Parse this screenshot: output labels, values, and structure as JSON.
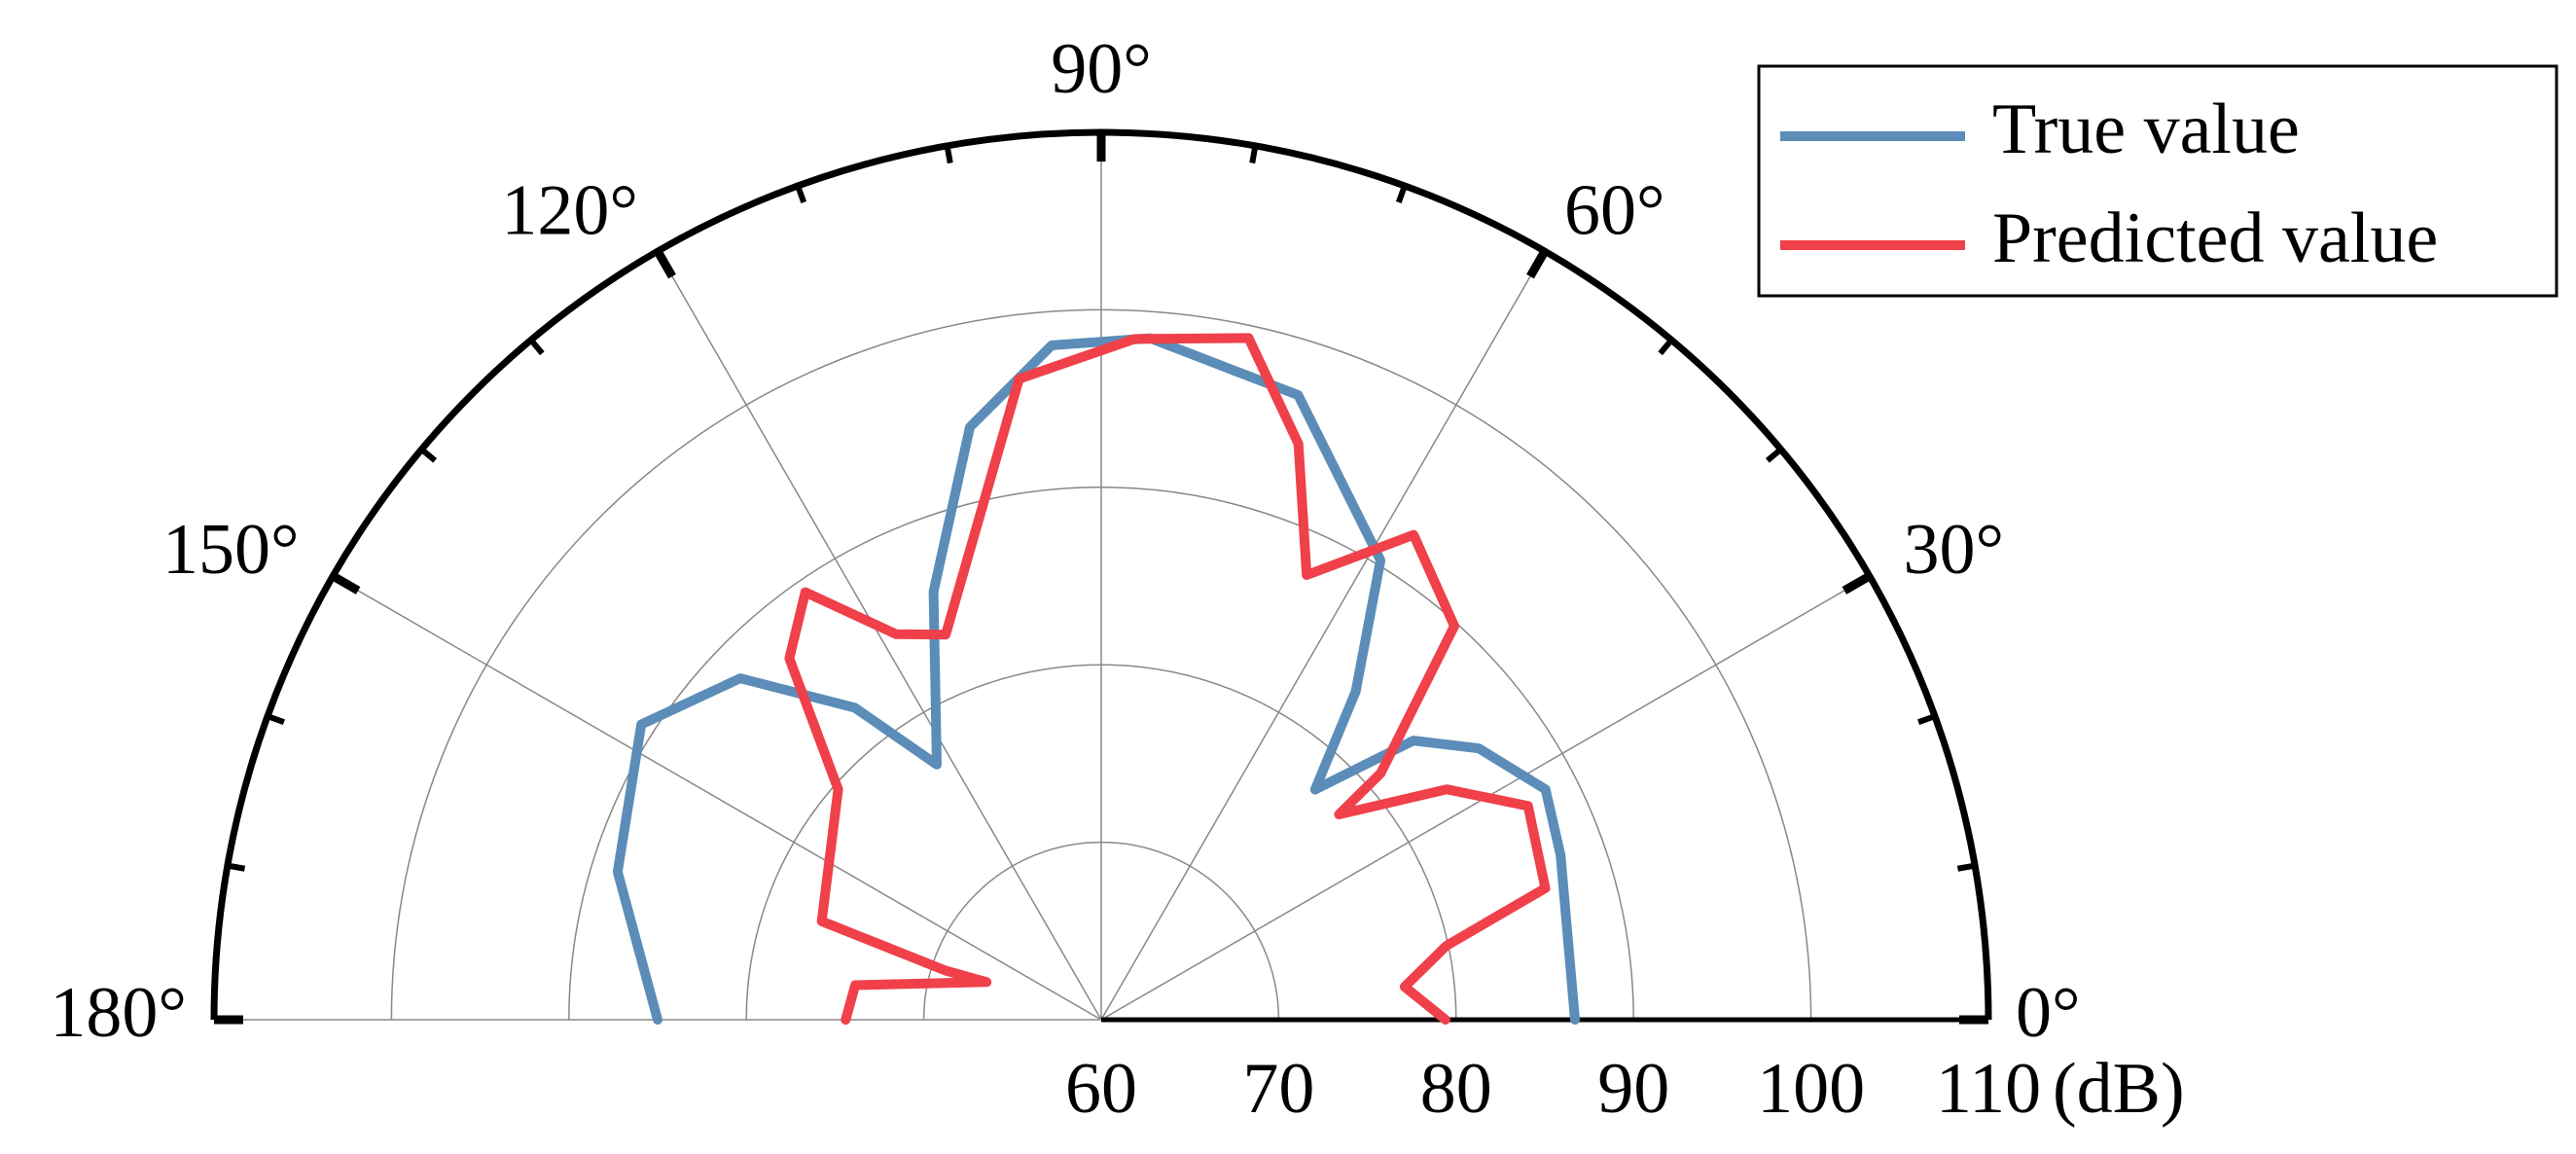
{
  "chart_data": {
    "type": "polar",
    "rlim": [
      60,
      110
    ],
    "rticks": [
      60,
      70,
      80,
      90,
      100,
      110
    ],
    "r_unit": "(dB)",
    "theta_range": [
      0,
      180
    ],
    "thetaticks": [
      {
        "value": 0,
        "label": "0°"
      },
      {
        "value": 30,
        "label": "30°"
      },
      {
        "value": 60,
        "label": "60°"
      },
      {
        "value": 90,
        "label": "90°"
      },
      {
        "value": 120,
        "label": "120°"
      },
      {
        "value": 150,
        "label": "150°"
      },
      {
        "value": 180,
        "label": "180°"
      }
    ],
    "theta_minor_ticks": [
      10,
      20,
      40,
      50,
      70,
      80,
      100,
      110,
      130,
      140,
      160,
      170
    ],
    "grid": true,
    "legend": "upper right",
    "series": [
      {
        "name": "True value",
        "color": "#5b8db8",
        "theta": [
          0,
          19.7,
          27.4,
          35.7,
          41.8,
          47.1,
          52.2,
          58.7,
          72.5,
          85.9,
          94.2,
          102.5,
          111.4,
          122.8,
          128.3,
          136.6,
          147.3,
          163,
          180
        ],
        "values": [
          86.7,
          87.5,
          88.2,
          86.2,
          83.6,
          77.7,
          83.4,
          90.3,
          96.9,
          98.5,
          98.1,
          94.2,
          85.9,
          77.1,
          82.4,
          88.0,
          90.8,
          88.5,
          85.0
        ]
      },
      {
        "name": "Predicted value",
        "color": "#f0404a",
        "theta": [
          0,
          6.2,
          12.1,
          16.5,
          26.6,
          33.7,
          40.8,
          41.4,
          48.1,
          57.2,
          65.2,
          71.1,
          77.8,
          87.2,
          97.3,
          112,
          118,
          124.7,
          130.8,
          138.8,
          160.6,
          162.5,
          161.8,
          172,
          180
        ],
        "values": [
          79.4,
          77.2,
          79.9,
          86.1,
          86.9,
          83.4,
          77.7,
          81.0,
          89.8,
          92.5,
          87.6,
          94.3,
          99.3,
          98.4,
          96.4,
          83.4,
          84.6,
          89.3,
          86.9,
          79.7,
          76.7,
          69.2,
          66.8,
          74.0,
          74.4
        ]
      }
    ]
  }
}
